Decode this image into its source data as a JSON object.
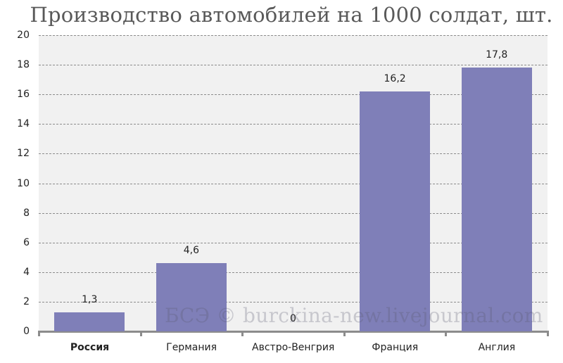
{
  "chart_data": {
    "type": "bar",
    "title": "Производство автомобилей на 1000 солдат, шт.",
    "xlabel": "",
    "ylabel": "",
    "categories": [
      "Россия",
      "Германия",
      "Австро-Венгрия",
      "Франция",
      "Англия"
    ],
    "values": [
      1.3,
      4.6,
      0,
      16.2,
      17.8
    ],
    "value_labels": [
      "1,3",
      "4,6",
      "0",
      "16,2",
      "17,8"
    ],
    "ylim": [
      0,
      20
    ],
    "yticks": [
      "0",
      "2",
      "4",
      "6",
      "8",
      "10",
      "12",
      "14",
      "16",
      "18",
      "20"
    ],
    "grid": true,
    "legend": "none",
    "highlighted_category": "Россия",
    "bar_color": "#7f7fb8",
    "plot_background": "#f1f1f1"
  },
  "watermark": "БСЭ © burckina-new.livejournal.com"
}
